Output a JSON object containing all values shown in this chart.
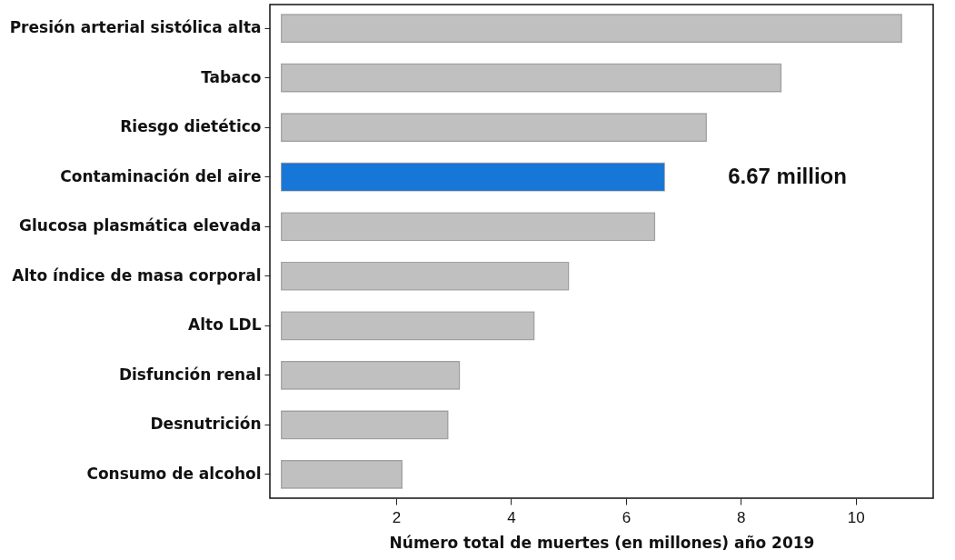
{
  "chart_data": {
    "type": "bar",
    "orientation": "horizontal",
    "xlabel": "Número total de muertes (en millones) año 2019",
    "categories": [
      "Presión arterial sistólica alta",
      "Tabaco",
      "Riesgo dietético ",
      "Contaminación del aire",
      "Glucosa plasmática elevada",
      "Alto índice de masa corporal",
      "Alto LDL",
      "Disfunción renal",
      "Desnutrición",
      "Consumo de alcohol"
    ],
    "values": [
      10.8,
      8.7,
      7.4,
      6.67,
      6.5,
      5.0,
      4.4,
      3.1,
      2.9,
      2.1
    ],
    "colors": [
      "#c0c0c0",
      "#c0c0c0",
      "#c0c0c0",
      "#1677d9",
      "#c0c0c0",
      "#c0c0c0",
      "#c0c0c0",
      "#c0c0c0",
      "#c0c0c0",
      "#c0c0c0"
    ],
    "value_labels": [
      null,
      null,
      null,
      "6.67 million",
      null,
      null,
      null,
      null,
      null,
      null
    ],
    "xlim": [
      -0.2,
      11.35
    ],
    "xticks": [
      2,
      4,
      6,
      8,
      10
    ],
    "grid": false
  }
}
